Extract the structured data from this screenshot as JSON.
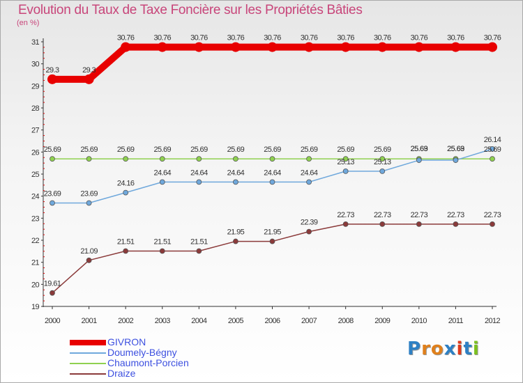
{
  "title": "Evolution du Taux de Taxe Foncière sur les Propriétés Bâties",
  "unit_label": "(en %)",
  "logo": {
    "text": "Proxiti",
    "colors": [
      "#2e80c4",
      "#e0801c",
      "#e0801c",
      "#2e80c4",
      "#e03a1c",
      "#2e80c4",
      "#7cc020"
    ]
  },
  "chart_data": {
    "type": "line",
    "title": "Evolution du Taux de Taxe Foncière sur les Propriétés Bâties",
    "ylabel": "(en %)",
    "xlabel": "",
    "ylim": [
      19,
      31
    ],
    "yticks": [
      "19",
      "20",
      "21",
      "22",
      "23",
      "24",
      "25",
      "26",
      "27",
      "28",
      "29",
      "30",
      "31"
    ],
    "x": [
      "2000",
      "2001",
      "2002",
      "2003",
      "2004",
      "2005",
      "2006",
      "2007",
      "2008",
      "2009",
      "2010",
      "2011",
      "2012"
    ],
    "series": [
      {
        "name": "GIVRON",
        "color": "#e80000",
        "values": [
          29.3,
          29.3,
          30.76,
          30.76,
          30.76,
          30.76,
          30.76,
          30.76,
          30.76,
          30.76,
          30.76,
          30.76,
          30.76
        ],
        "labels": [
          "29.3",
          "29.3",
          "30.76",
          "30.76",
          "30.76",
          "30.76",
          "30.76",
          "30.76",
          "30.76",
          "30.76",
          "30.76",
          "30.76",
          "30.76"
        ]
      },
      {
        "name": "Doumely-Bégny",
        "color": "#6fa8dc",
        "values": [
          23.69,
          23.69,
          24.16,
          24.64,
          24.64,
          24.64,
          24.64,
          24.64,
          25.13,
          25.13,
          25.63,
          25.63,
          26.14
        ],
        "labels": [
          "23.69",
          "23.69",
          "24.16",
          "24.64",
          "24.64",
          "24.64",
          "24.64",
          "24.64",
          "25.13",
          "25.13",
          "25.63",
          "25.63",
          "26.14"
        ]
      },
      {
        "name": "Chaumont-Porcien",
        "color": "#8fd14f",
        "values": [
          25.69,
          25.69,
          25.69,
          25.69,
          25.69,
          25.69,
          25.69,
          25.69,
          25.69,
          25.69,
          25.69,
          25.69,
          25.69
        ],
        "labels": [
          "25.69",
          "25.69",
          "25.69",
          "25.69",
          "25.69",
          "25.69",
          "25.69",
          "25.69",
          "25.69",
          "25.69",
          "25.69",
          "25.69",
          "25.69"
        ]
      },
      {
        "name": "Draize",
        "color": "#8b3a3a",
        "values": [
          19.61,
          21.09,
          21.51,
          21.51,
          21.51,
          21.95,
          21.95,
          22.39,
          22.73,
          22.73,
          22.73,
          22.73,
          22.73
        ],
        "labels": [
          "19.61",
          "21.09",
          "21.51",
          "21.51",
          "21.51",
          "21.95",
          "21.95",
          "22.39",
          "22.73",
          "22.73",
          "22.73",
          "22.73",
          "22.73"
        ]
      }
    ],
    "legend": [
      "GIVRON",
      "Doumely-Bégny",
      "Chaumont-Porcien",
      "Draize"
    ],
    "legend_position": "bottom-left",
    "grid": false
  }
}
